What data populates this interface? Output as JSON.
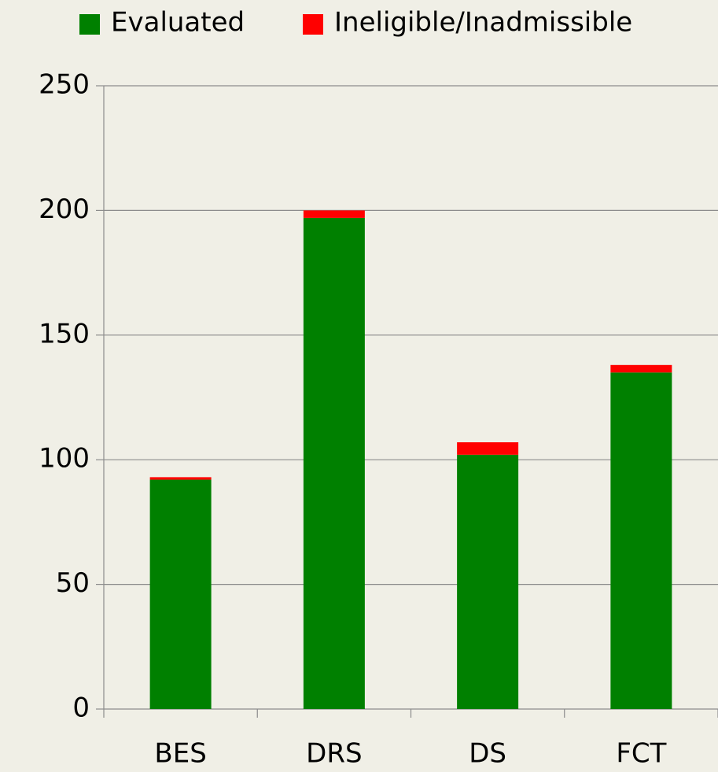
{
  "chart_data": {
    "type": "stacked-bar",
    "categories": [
      "BES",
      "DRS",
      "DS",
      "FCT"
    ],
    "series": [
      {
        "name": "Evaluated",
        "color": "#008000",
        "values": [
          92,
          197,
          102,
          135
        ]
      },
      {
        "name": "Ineligible/Inadmissible",
        "color": "#ff0000",
        "values": [
          1,
          3,
          5,
          3
        ]
      }
    ],
    "ylim": [
      0,
      250
    ],
    "yticks": [
      0,
      50,
      100,
      150,
      200,
      250
    ],
    "grid": true,
    "legend": "top"
  }
}
